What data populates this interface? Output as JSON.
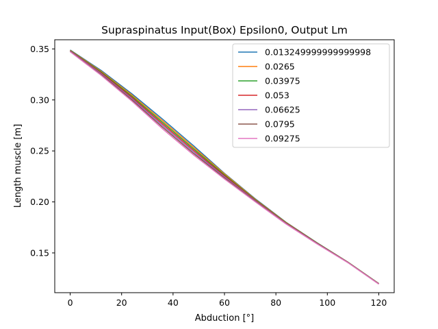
{
  "chart_data": {
    "type": "line",
    "title": "Supraspinatus Input(Box) Epsilon0, Output Lm",
    "xlabel": "Abduction [°]",
    "ylabel": "Length muscle [m]",
    "xlim": [
      -6,
      126
    ],
    "ylim": [
      0.111,
      0.359
    ],
    "xticks": [
      0,
      20,
      40,
      60,
      80,
      100,
      120
    ],
    "yticks": [
      0.15,
      0.2,
      0.25,
      0.3,
      0.35
    ],
    "xtick_labels": [
      "0",
      "20",
      "40",
      "60",
      "80",
      "100",
      "120"
    ],
    "ytick_labels": [
      "0.15",
      "0.20",
      "0.25",
      "0.30",
      "0.35"
    ],
    "grid": false,
    "legend_position": "top-right",
    "x": [
      0,
      12,
      24,
      36,
      48,
      60,
      72,
      84,
      96,
      108,
      120
    ],
    "series": [
      {
        "name": "0.013249999999999998",
        "color": "#1f77b4",
        "values": [
          0.349,
          0.329,
          0.306,
          0.281,
          0.255,
          0.228,
          0.203,
          0.18,
          0.16,
          0.141,
          0.12
        ]
      },
      {
        "name": "0.0265",
        "color": "#ff7f0e",
        "values": [
          0.3487,
          0.3282,
          0.3048,
          0.2794,
          0.2535,
          0.2275,
          0.2025,
          0.1797,
          0.1598,
          0.1409,
          0.1199
        ]
      },
      {
        "name": "0.03975",
        "color": "#2ca02c",
        "values": [
          0.3484,
          0.3274,
          0.3036,
          0.2778,
          0.252,
          0.2265,
          0.202,
          0.1794,
          0.1596,
          0.1408,
          0.1198
        ]
      },
      {
        "name": "0.053",
        "color": "#d62728",
        "values": [
          0.3481,
          0.3266,
          0.3024,
          0.2762,
          0.2505,
          0.2255,
          0.2015,
          0.1791,
          0.1594,
          0.1407,
          0.1197
        ]
      },
      {
        "name": "0.06625",
        "color": "#9467bd",
        "values": [
          0.3478,
          0.3258,
          0.3012,
          0.2746,
          0.249,
          0.2245,
          0.201,
          0.1788,
          0.1592,
          0.1406,
          0.1196
        ]
      },
      {
        "name": "0.0795",
        "color": "#8c564b",
        "values": [
          0.3475,
          0.325,
          0.3,
          0.273,
          0.2475,
          0.2235,
          0.2005,
          0.1785,
          0.159,
          0.1405,
          0.1195
        ]
      },
      {
        "name": "0.09275",
        "color": "#e377c2",
        "values": [
          0.3472,
          0.3242,
          0.2988,
          0.2714,
          0.246,
          0.2225,
          0.2,
          0.1782,
          0.1588,
          0.1404,
          0.1194
        ]
      }
    ]
  }
}
